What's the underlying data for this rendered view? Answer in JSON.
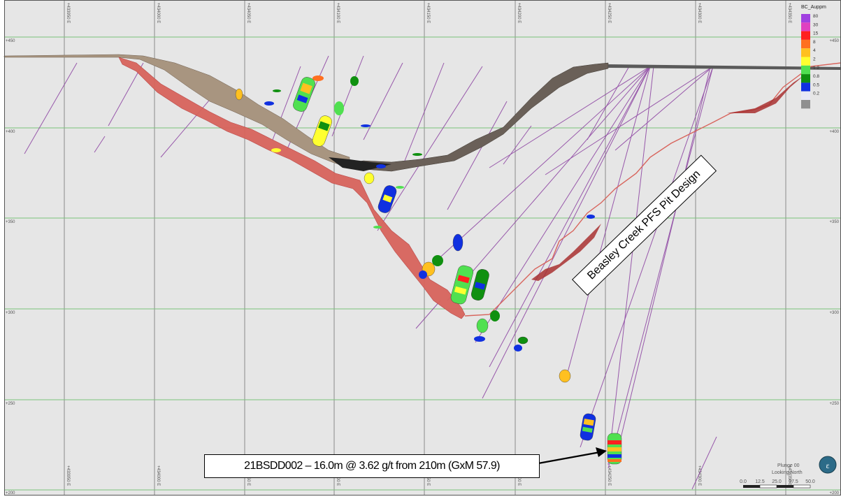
{
  "section": {
    "easting_labels": [
      "+433950 E",
      "+434000 E",
      "+434050 E",
      "+434100 E",
      "+434150 E",
      "+434200 E",
      "+434250 E",
      "+434300 E",
      "+434350 E"
    ],
    "rl_labels": [
      "+450",
      "+400",
      "+350",
      "+300",
      "+250",
      "+200"
    ],
    "right_rl_labels": [
      "+450",
      "+400",
      "+350",
      "+300",
      "+250",
      "+200"
    ]
  },
  "legend": {
    "title": "BC_Auppm",
    "items": [
      {
        "label": "80",
        "color": "#a040e0"
      },
      {
        "label": "30",
        "color": "#e040c0"
      },
      {
        "label": "15",
        "color": "#ff2020"
      },
      {
        "label": "8",
        "color": "#ff7020"
      },
      {
        "label": "4",
        "color": "#ffc020"
      },
      {
        "label": "2",
        "color": "#ffff30"
      },
      {
        "label": "1.2",
        "color": "#50e050"
      },
      {
        "label": "0.8",
        "color": "#109010"
      },
      {
        "label": "0.5",
        "color": "#1030e0"
      },
      {
        "label": "0.2",
        "color": "#e8e8f4"
      },
      {
        "label": "",
        "color": "#909090"
      }
    ]
  },
  "annotations": {
    "pit_design": "Beasley Creek PFS Pit Design",
    "drill_hole": "21BSDD002 – 16.0m @ 3.62 g/t from 210m (GxM 57.9)"
  },
  "view": {
    "plunge": "Plunge 00",
    "looking": "Looking North",
    "scale_ticks": [
      "0.0",
      "12.5",
      "25.0",
      "37.5",
      "50.0"
    ]
  },
  "colors": {
    "background": "#e6e6e6",
    "grid_green": "#7bc27b",
    "grid_gray": "#8a8a8a",
    "pit_red": "#d8645c",
    "drill_trace": "#8a3fa0"
  }
}
